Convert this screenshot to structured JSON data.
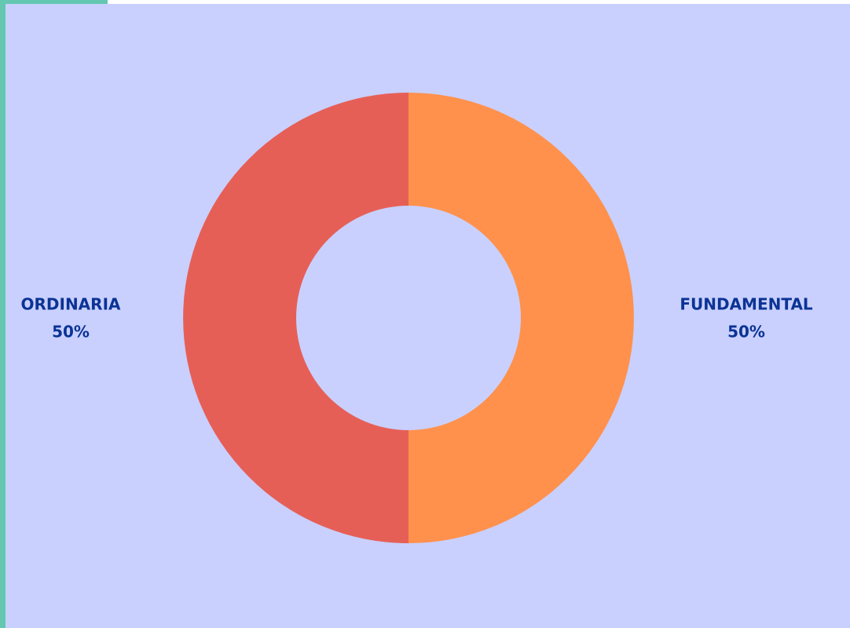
{
  "chart_data": {
    "type": "donut",
    "categories": [
      "FUNDAMENTAL",
      "ORDINARIA"
    ],
    "values": [
      50,
      50
    ],
    "value_labels": [
      "50%",
      "50%"
    ],
    "colors": [
      "#ff914d",
      "#e65f57"
    ]
  }
}
